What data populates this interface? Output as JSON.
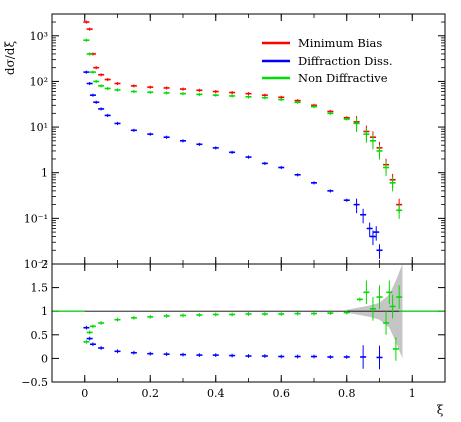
{
  "chart_data": [
    {
      "type": "scatter",
      "panel": "main",
      "ylabel": "dσ/dξ",
      "yscale": "log",
      "ylim": [
        0.01,
        3000
      ],
      "xlim": [
        -0.1,
        1.1
      ],
      "y_ticks": [
        {
          "value": 1000,
          "label": "10³"
        },
        {
          "value": 100,
          "label": "10²"
        },
        {
          "value": 10,
          "label": "10¹"
        },
        {
          "value": 1,
          "label": "1"
        },
        {
          "value": 0.1,
          "label": "10⁻¹"
        },
        {
          "value": 0.01,
          "label": "10⁻²"
        }
      ],
      "legend_position": "top-right",
      "series": [
        {
          "name": "Minimum Bias",
          "color": "#ff0000",
          "x": [
            0.005,
            0.015,
            0.025,
            0.035,
            0.05,
            0.07,
            0.1,
            0.15,
            0.2,
            0.25,
            0.3,
            0.35,
            0.4,
            0.45,
            0.5,
            0.55,
            0.6,
            0.65,
            0.7,
            0.75,
            0.8,
            0.83,
            0.86,
            0.88,
            0.9,
            0.92,
            0.94,
            0.96
          ],
          "y": [
            2000,
            1400,
            400,
            200,
            140,
            110,
            90,
            80,
            75,
            72,
            68,
            64,
            60,
            57,
            54,
            50,
            45,
            38,
            30,
            22,
            16,
            13,
            8,
            6,
            3.5,
            1.5,
            0.7,
            0.2
          ]
        },
        {
          "name": "Diffraction Diss.",
          "color": "#0000ff",
          "x": [
            0.005,
            0.015,
            0.025,
            0.035,
            0.05,
            0.07,
            0.1,
            0.15,
            0.2,
            0.25,
            0.3,
            0.35,
            0.4,
            0.45,
            0.5,
            0.55,
            0.6,
            0.65,
            0.7,
            0.75,
            0.8,
            0.83,
            0.85,
            0.87,
            0.88,
            0.89,
            0.9
          ],
          "y": [
            160,
            90,
            50,
            35,
            25,
            18,
            12,
            8.5,
            7,
            6,
            5,
            4.2,
            3.5,
            2.8,
            2.2,
            1.6,
            1.3,
            0.9,
            0.6,
            0.4,
            0.25,
            0.2,
            0.12,
            0.06,
            0.04,
            0.05,
            0.02
          ]
        },
        {
          "name": "Non Diffractive",
          "color": "#00dd00",
          "x": [
            0.005,
            0.015,
            0.025,
            0.035,
            0.05,
            0.07,
            0.1,
            0.15,
            0.2,
            0.25,
            0.3,
            0.35,
            0.4,
            0.45,
            0.5,
            0.55,
            0.6,
            0.65,
            0.7,
            0.75,
            0.8,
            0.83,
            0.86,
            0.88,
            0.9,
            0.92,
            0.94,
            0.96
          ],
          "y": [
            800,
            400,
            160,
            100,
            80,
            70,
            65,
            60,
            58,
            56,
            54,
            52,
            50,
            48,
            46,
            44,
            40,
            35,
            28,
            20,
            15,
            12,
            7,
            5,
            3,
            1.3,
            0.6,
            0.15
          ]
        }
      ]
    },
    {
      "type": "scatter",
      "panel": "ratio",
      "xlabel": "ξ",
      "ylim": [
        -0.5,
        2
      ],
      "xlim": [
        -0.1,
        1.1
      ],
      "y_ticks": [
        {
          "value": 2,
          "label": "2"
        },
        {
          "value": 1.5,
          "label": "1.5"
        },
        {
          "value": 1,
          "label": "1"
        },
        {
          "value": 0.5,
          "label": "0.5"
        },
        {
          "value": 0,
          "label": "0"
        },
        {
          "value": -0.5,
          "label": "−0.5"
        }
      ],
      "x_ticks": [
        {
          "value": 0,
          "label": "0"
        },
        {
          "value": 0.2,
          "label": "0.2"
        },
        {
          "value": 0.4,
          "label": "0.4"
        },
        {
          "value": 0.6,
          "label": "0.6"
        },
        {
          "value": 0.8,
          "label": "0.8"
        },
        {
          "value": 1,
          "label": "1"
        }
      ],
      "series": [
        {
          "name": "Diffraction Diss.",
          "color": "#0000ff",
          "x": [
            0.005,
            0.015,
            0.025,
            0.05,
            0.1,
            0.15,
            0.2,
            0.25,
            0.3,
            0.35,
            0.4,
            0.45,
            0.5,
            0.55,
            0.6,
            0.65,
            0.7,
            0.75,
            0.8,
            0.85,
            0.9
          ],
          "y": [
            0.65,
            0.42,
            0.3,
            0.22,
            0.15,
            0.12,
            0.1,
            0.09,
            0.08,
            0.07,
            0.07,
            0.06,
            0.05,
            0.05,
            0.04,
            0.04,
            0.04,
            0.03,
            0.03,
            0.03,
            0.02
          ]
        },
        {
          "name": "Non Diffractive",
          "color": "#00dd00",
          "x": [
            0.005,
            0.015,
            0.025,
            0.05,
            0.1,
            0.15,
            0.2,
            0.25,
            0.3,
            0.35,
            0.4,
            0.45,
            0.5,
            0.55,
            0.6,
            0.65,
            0.7,
            0.75,
            0.8,
            0.84,
            0.86,
            0.88,
            0.9,
            0.92,
            0.93,
            0.94,
            0.95,
            0.96
          ],
          "y": [
            0.35,
            0.55,
            0.68,
            0.75,
            0.82,
            0.86,
            0.88,
            0.9,
            0.91,
            0.92,
            0.93,
            0.93,
            0.94,
            0.94,
            0.94,
            0.95,
            0.95,
            0.96,
            0.97,
            1.25,
            1.4,
            1.05,
            1.3,
            0.75,
            1.4,
            1.1,
            0.2,
            1.3
          ]
        }
      ]
    }
  ]
}
